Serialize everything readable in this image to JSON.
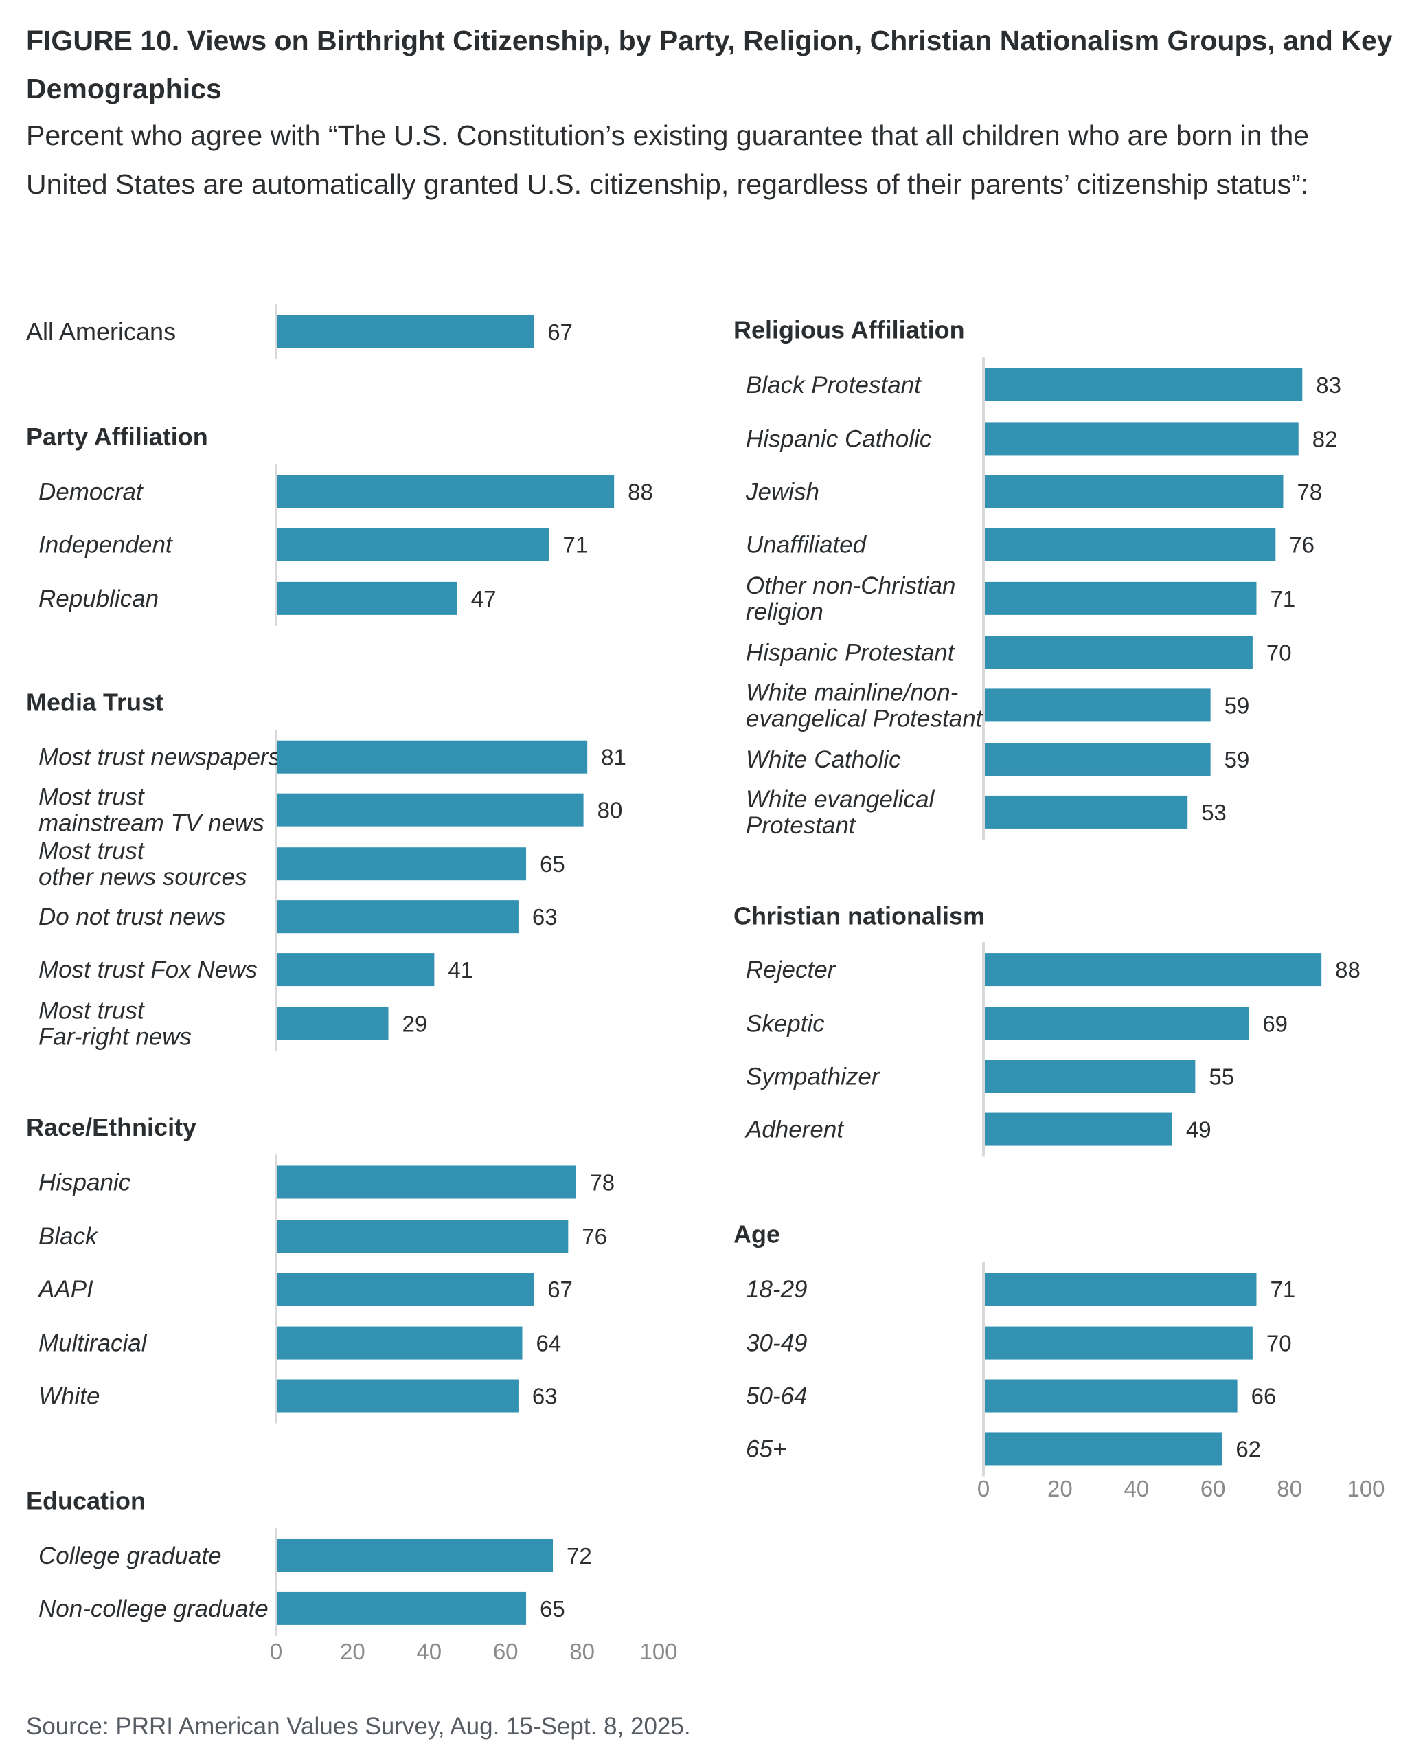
{
  "title": "FIGURE 10. Views on Birthright Citizenship, by Party, Religion, Christian Nationalism Groups, and Key Demographics",
  "subtitle": "Percent who agree with “The U.S. Constitution’s existing guarantee that all children who are born in the United States are automatically granted U.S. citizenship, regardless of their parents’ citizenship status”:",
  "source": "Source: PRRI American Values Survey, Aug. 15-Sept. 8, 2025.",
  "colors": {
    "bar": "#3392b1",
    "axis": "#d9d9d9",
    "tick": "#8a8a8a",
    "text": "#2b2e31"
  },
  "chart_data": {
    "type": "bar",
    "orientation": "horizontal",
    "title": "FIGURE 10. Views on Birthright Citizenship, by Party, Religion, Christian Nationalism Groups, and Key Demographics",
    "xlabel": "",
    "ylabel": "",
    "xlim": [
      0,
      100
    ],
    "xticks": [
      0,
      20,
      40,
      60,
      80,
      100
    ],
    "grid": false,
    "legend": "none",
    "panels": [
      {
        "column": "left",
        "groups": [
          {
            "header": "",
            "categories": [
              "All Americans"
            ],
            "values": [
              67
            ],
            "style": "plain"
          },
          {
            "header": "Party Affiliation",
            "categories": [
              "Democrat",
              "Independent",
              "Republican"
            ],
            "values": [
              88,
              71,
              47
            ]
          },
          {
            "header": "Media Trust",
            "categories": [
              "Most trust newspapers",
              "Most trust\nmainstream TV news",
              "Most trust\nother news sources",
              "Do not trust news",
              "Most trust Fox News",
              "Most trust\nFar-right news"
            ],
            "values": [
              81,
              80,
              65,
              63,
              41,
              29
            ]
          },
          {
            "header": "Race/Ethnicity",
            "categories": [
              "Hispanic",
              "Black",
              "AAPI",
              "Multiracial",
              "White"
            ],
            "values": [
              78,
              76,
              67,
              64,
              63
            ]
          },
          {
            "header": "Education",
            "categories": [
              "College graduate",
              "Non-college graduate"
            ],
            "values": [
              72,
              65
            ],
            "show_axis": true
          }
        ]
      },
      {
        "column": "right",
        "groups": [
          {
            "header": "Religious Affiliation",
            "categories": [
              "Black Protestant",
              "Hispanic Catholic",
              "Jewish",
              "Unaffiliated",
              "Other non-Christian\nreligion",
              "Hispanic Protestant",
              "White mainline/non-\nevangelical Protestant",
              "White Catholic",
              "White evangelical\nProtestant"
            ],
            "values": [
              83,
              82,
              78,
              76,
              71,
              70,
              59,
              59,
              53
            ]
          },
          {
            "header": "Christian nationalism",
            "categories": [
              "Rejecter",
              "Skeptic",
              "Sympathizer",
              "Adherent"
            ],
            "values": [
              88,
              69,
              55,
              49
            ]
          },
          {
            "header": "Age",
            "categories": [
              "18-29",
              "30-49",
              "50-64",
              "65+"
            ],
            "values": [
              71,
              70,
              66,
              62
            ],
            "show_axis": true
          }
        ]
      }
    ]
  }
}
